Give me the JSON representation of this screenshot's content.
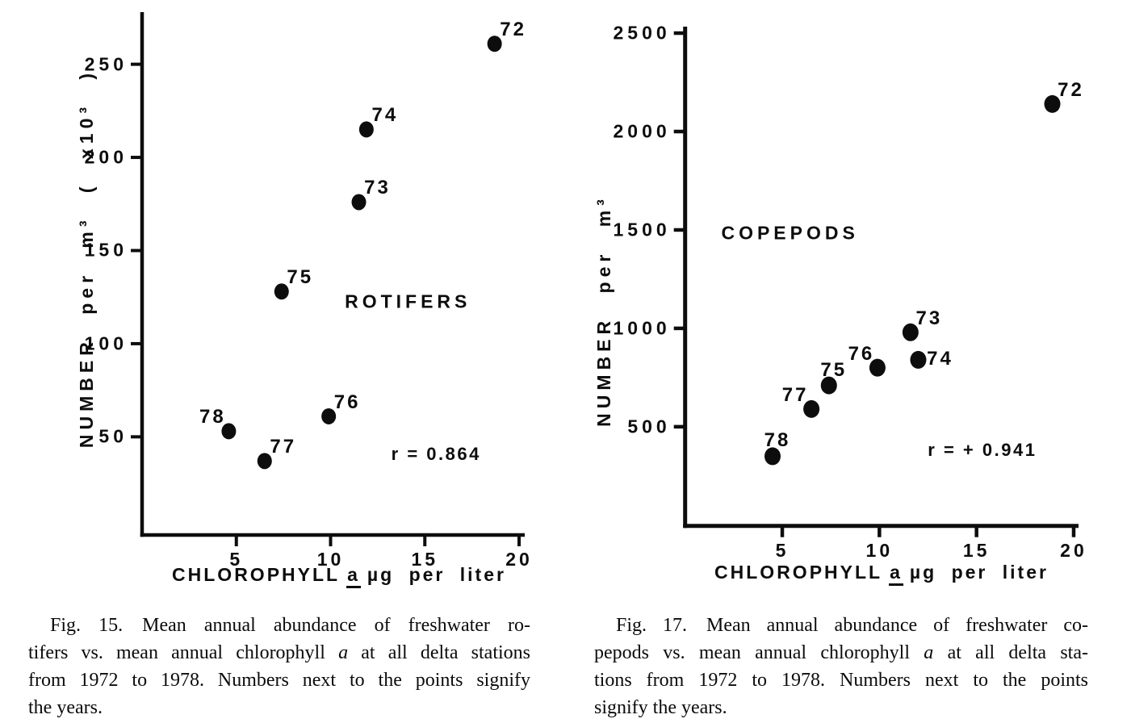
{
  "page": {
    "background": "#ffffff",
    "ink": "#0d0d0d"
  },
  "chart_data": [
    {
      "type": "scatter",
      "figure": "Fig. 15",
      "title": {
        "text": "ROTIFERS",
        "x": 14.1,
        "y": 122.6
      },
      "r_label": {
        "text": "r = 0.864",
        "x": 15.6,
        "y": 40.6
      },
      "xlabel": {
        "pre": "CHLOROPHYLL",
        "a": "a",
        "post": "µg per liter"
      },
      "ylabel": "NUMBER per m³ ( x10³ )",
      "x_ticks": [
        "5",
        "10",
        "15",
        "20"
      ],
      "y_ticks": [
        "50",
        "100",
        "150",
        "200",
        "250"
      ],
      "xlim": [
        0,
        20.3
      ],
      "ylim": [
        -2.7,
        278
      ],
      "points": [
        {
          "year": "72",
          "x": 18.7,
          "y": 261,
          "label_dir": "ne"
        },
        {
          "year": "73",
          "x": 11.5,
          "y": 176,
          "label_dir": "ne"
        },
        {
          "year": "74",
          "x": 11.9,
          "y": 215,
          "label_dir": "ne"
        },
        {
          "year": "75",
          "x": 7.4,
          "y": 128,
          "label_dir": "ne"
        },
        {
          "year": "76",
          "x": 9.9,
          "y": 61,
          "label_dir": "ne"
        },
        {
          "year": "77",
          "x": 6.5,
          "y": 37,
          "label_dir": "ne"
        },
        {
          "year": "78",
          "x": 4.6,
          "y": 53,
          "label_dir": "nw"
        }
      ]
    },
    {
      "type": "scatter",
      "figure": "Fig. 17",
      "title": {
        "text": "COPEPODS",
        "x": 5.4,
        "y": 1485
      },
      "r_label": {
        "text": "r = + 0.941",
        "x": 15.3,
        "y": 379
      },
      "xlabel": {
        "pre": "CHLOROPHYLL",
        "a": "a",
        "post": "µg per liter"
      },
      "ylabel": "NUMBER per m³",
      "x_ticks": [
        "5",
        "10",
        "15",
        "20"
      ],
      "y_ticks": [
        "500",
        "1000",
        "1500",
        "2000",
        "2500"
      ],
      "xlim": [
        0,
        20.25
      ],
      "ylim": [
        -3.7,
        2533
      ],
      "points": [
        {
          "year": "72",
          "x": 18.9,
          "y": 2140,
          "label_dir": "ne"
        },
        {
          "year": "73",
          "x": 11.6,
          "y": 980,
          "label_dir": "ne"
        },
        {
          "year": "74",
          "x": 12.0,
          "y": 840,
          "label_dir": "e"
        },
        {
          "year": "75",
          "x": 7.4,
          "y": 710,
          "label_dir": "n"
        },
        {
          "year": "76",
          "x": 9.9,
          "y": 800,
          "label_dir": "nw"
        },
        {
          "year": "77",
          "x": 6.5,
          "y": 590,
          "label_dir": "nw"
        },
        {
          "year": "78",
          "x": 4.5,
          "y": 350,
          "label_dir": "n"
        }
      ]
    }
  ],
  "captions": [
    {
      "lines": [
        [
          {
            "t": "Fig. 15. Mean annual abundance of freshwater ro-"
          }
        ],
        [
          {
            "t": "tifers vs. mean annual chlorophyll "
          },
          {
            "t": "a",
            "i": true
          },
          {
            "t": " at all delta stations"
          }
        ],
        [
          {
            "t": "from 1972 to 1978. Numbers next to the points signify"
          }
        ],
        [
          {
            "t": "the years."
          }
        ]
      ]
    },
    {
      "lines": [
        [
          {
            "t": "Fig. 17. Mean annual abundance of freshwater co-"
          }
        ],
        [
          {
            "t": "pepods vs. mean annual chlorophyll "
          },
          {
            "t": "a",
            "i": true
          },
          {
            "t": " at all delta sta-"
          }
        ],
        [
          {
            "t": "tions from 1972 to 1978. Numbers next to the points"
          }
        ],
        [
          {
            "t": "signify the years."
          }
        ]
      ]
    }
  ]
}
